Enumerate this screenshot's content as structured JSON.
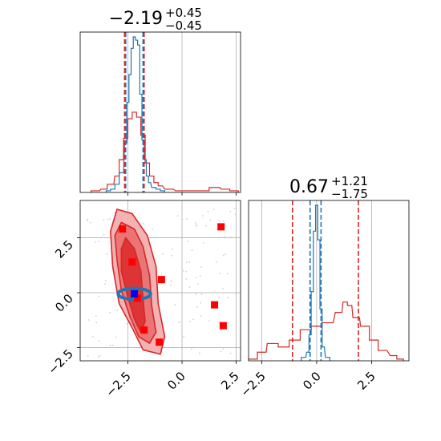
{
  "chart_data": {
    "type": "corner",
    "parameters": [
      "p0",
      "p1"
    ],
    "titles": [
      {
        "value": "−2.19",
        "upper": "+0.45",
        "lower": "−0.45"
      },
      {
        "value": "0.67",
        "upper": "+1.21",
        "lower": "−1.75"
      }
    ],
    "axes": {
      "x0": {
        "lim": [
          -4.7,
          2.7
        ],
        "ticks": [
          -2.5,
          0.0,
          2.5
        ],
        "tick_labels": [
          "−2.5",
          "0.0",
          "2.5"
        ]
      },
      "x1": {
        "lim": [
          -3.1,
          4.2
        ],
        "ticks": [
          -2.5,
          0.0,
          2.5
        ],
        "tick_labels": [
          "−2.5",
          "0.0",
          "2.5"
        ]
      },
      "y1": {
        "lim": [
          -3.1,
          4.2
        ],
        "ticks": [
          -2.5,
          0.0,
          2.5
        ],
        "tick_labels": [
          "−2.5",
          "0.0",
          "2.5"
        ]
      }
    },
    "grid": true,
    "colors": {
      "blue": "#1f77b4",
      "red": "#d62728",
      "marker_red": "#ff0000",
      "marker_blue": "#0000ff"
    },
    "series": [
      {
        "color": "blue",
        "quantiles_p0": [
          -2.6,
          -1.8
        ],
        "quantiles_p1": [
          -0.3,
          0.2
        ],
        "hist_p0": {
          "x": [
            -3.4,
            -3.2,
            -3.0,
            -2.8,
            -2.6,
            -2.5,
            -2.4,
            -2.3,
            -2.2,
            -2.1,
            -2.0,
            -1.9,
            -1.8,
            -1.7,
            -1.6,
            -1.5,
            -1.3,
            -1.1,
            -0.9
          ],
          "y": [
            0.01,
            0.02,
            0.05,
            0.12,
            0.3,
            0.55,
            0.72,
            0.88,
            0.95,
            0.93,
            0.9,
            0.6,
            0.32,
            0.2,
            0.1,
            0.06,
            0.03,
            0.02,
            0.01
          ]
        },
        "hist_p1": {
          "x": [
            -0.6,
            -0.4,
            -0.3,
            -0.2,
            -0.1,
            0.0,
            0.1,
            0.2,
            0.3,
            0.5
          ],
          "y": [
            0.02,
            0.05,
            0.15,
            0.4,
            0.75,
            0.9,
            0.7,
            0.3,
            0.08,
            0.02
          ]
        },
        "contour": {
          "center": [
            -2.2,
            -0.05
          ],
          "half_width": 0.75,
          "half_height": 0.25
        }
      },
      {
        "color": "red",
        "quantiles_p0": [
          -2.65,
          -1.75
        ],
        "quantiles_p1": [
          -1.1,
          1.9
        ],
        "hist_p0": {
          "x": [
            -4.0,
            -3.6,
            -3.3,
            -3.0,
            -2.8,
            -2.6,
            -2.4,
            -2.2,
            -2.0,
            -1.8,
            -1.6,
            -1.4,
            -1.2,
            -1.0,
            -0.6,
            0.0,
            1.0,
            1.5,
            2.0,
            2.4
          ],
          "y": [
            0.01,
            0.02,
            0.05,
            0.1,
            0.2,
            0.33,
            0.45,
            0.49,
            0.46,
            0.35,
            0.18,
            0.1,
            0.06,
            0.04,
            0.02,
            0.01,
            0.01,
            0.03,
            0.02,
            0.01
          ]
        },
        "hist_p1": {
          "x": [
            -2.9,
            -2.5,
            -2.0,
            -1.5,
            -1.0,
            -0.5,
            0.0,
            0.5,
            1.0,
            1.3,
            1.5,
            1.8,
            2.2,
            2.6,
            3.0,
            3.5,
            3.8
          ],
          "y": [
            0.01,
            0.05,
            0.1,
            0.08,
            0.12,
            0.18,
            0.2,
            0.22,
            0.28,
            0.34,
            0.32,
            0.25,
            0.2,
            0.12,
            0.06,
            0.03,
            0.01
          ]
        },
        "contour_levels": [
          [
            [
              -3.0,
              3.8
            ],
            [
              -2.3,
              3.6
            ],
            [
              -1.6,
              2.6
            ],
            [
              -1.2,
              1.2
            ],
            [
              -1.1,
              -0.5
            ],
            [
              -0.8,
              -2.0
            ],
            [
              -1.0,
              -2.8
            ],
            [
              -1.8,
              -2.6
            ],
            [
              -2.3,
              -1.6
            ],
            [
              -2.9,
              -0.5
            ],
            [
              -3.2,
              1.2
            ],
            [
              -3.3,
              2.8
            ]
          ],
          [
            [
              -2.8,
              3.2
            ],
            [
              -2.2,
              2.9
            ],
            [
              -1.8,
              2.1
            ],
            [
              -1.5,
              0.8
            ],
            [
              -1.4,
              -0.6
            ],
            [
              -1.2,
              -1.8
            ],
            [
              -1.5,
              -2.3
            ],
            [
              -2.0,
              -2.0
            ],
            [
              -2.4,
              -1.1
            ],
            [
              -2.8,
              0.1
            ],
            [
              -3.0,
              1.5
            ],
            [
              -3.1,
              2.6
            ]
          ],
          [
            [
              -2.6,
              2.5
            ],
            [
              -2.2,
              2.0
            ],
            [
              -1.9,
              1.0
            ],
            [
              -1.8,
              -0.3
            ],
            [
              -1.7,
              -1.3
            ],
            [
              -1.9,
              -1.8
            ],
            [
              -2.2,
              -1.2
            ],
            [
              -2.5,
              -0.2
            ],
            [
              -2.8,
              1.0
            ],
            [
              -2.8,
              2.0
            ]
          ]
        ],
        "markers": [
          [
            -2.75,
            2.9
          ],
          [
            -2.3,
            1.4
          ],
          [
            -2.05,
            -0.25
          ],
          [
            -0.95,
            0.6
          ],
          [
            1.5,
            -0.55
          ],
          [
            1.8,
            3.0
          ],
          [
            1.9,
            -1.5
          ],
          [
            -1.75,
            -1.7
          ],
          [
            -1.05,
            -2.25
          ]
        ]
      }
    ],
    "truth_marker": [
      -2.2,
      -0.05
    ]
  }
}
